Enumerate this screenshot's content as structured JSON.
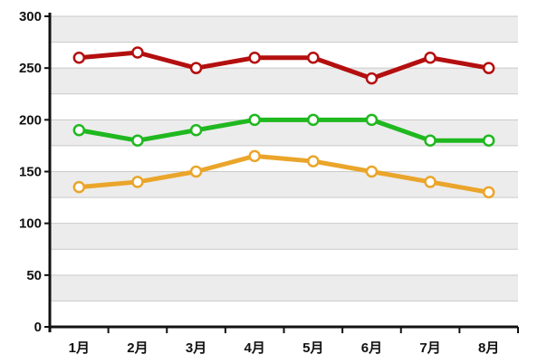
{
  "chart_data": {
    "type": "line",
    "categories": [
      "1月",
      "2月",
      "3月",
      "4月",
      "5月",
      "6月",
      "7月",
      "8月"
    ],
    "ylim": [
      0,
      300
    ],
    "yticks": [
      0,
      50,
      100,
      150,
      200,
      250,
      300
    ],
    "grid": true,
    "legend": "none",
    "series": [
      {
        "values": [
          260,
          265,
          250,
          260,
          260,
          240,
          260,
          250
        ],
        "color": "#b40f0f"
      },
      {
        "values": [
          190,
          180,
          190,
          200,
          200,
          200,
          180,
          180
        ],
        "color": "#1fb81f"
      },
      {
        "values": [
          135,
          140,
          150,
          165,
          160,
          150,
          140,
          130
        ],
        "color": "#eaa52a"
      }
    ]
  }
}
